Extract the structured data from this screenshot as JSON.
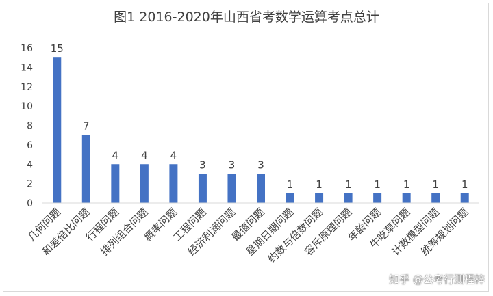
{
  "chart_data": {
    "type": "bar",
    "title": "图1  2016-2020年山西省考数学运算考点总计",
    "categories": [
      "几何问题",
      "和差倍比问题",
      "行程问题",
      "排列组合问题",
      "概率问题",
      "工程问题",
      "经济利润问题",
      "最值问题",
      "星期日期问题",
      "约数与倍数问题",
      "容斥原理问题",
      "年龄问题",
      "牛吃草问题",
      "计数模型问题",
      "统筹规划问题"
    ],
    "values": [
      15,
      7,
      4,
      4,
      4,
      3,
      3,
      3,
      1,
      1,
      1,
      1,
      1,
      1,
      1
    ],
    "data_labels": [
      "15",
      "7",
      "4",
      "4",
      "4",
      "3",
      "3",
      "3",
      "1",
      "1",
      "1",
      "1",
      "1",
      "1",
      "1"
    ],
    "y_ticks": [
      "0",
      "2",
      "4",
      "6",
      "8",
      "10",
      "12",
      "14",
      "16"
    ],
    "ylim": [
      0,
      16
    ],
    "grid": false,
    "bar_color": "#4472c4"
  },
  "watermark": "知乎 @公考行测程梓"
}
